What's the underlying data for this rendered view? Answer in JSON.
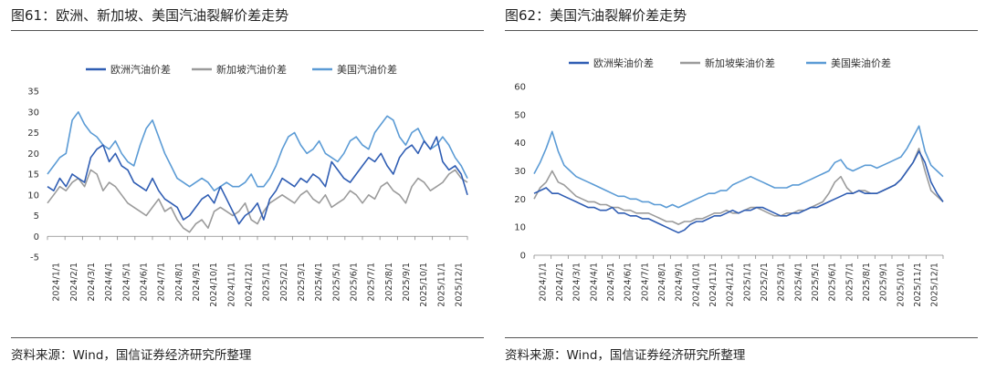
{
  "panels": [
    {
      "figure_title": "图61：欧洲、新加坡、美国汽油裂解价差走势",
      "source": "资料来源：Wind，国信证券经济研究所整理"
    },
    {
      "figure_title": "图62：美国汽油裂解价差走势",
      "source": "资料来源：Wind，国信证券经济研究所整理"
    }
  ],
  "chart_data": [
    {
      "type": "line",
      "title": "图61：欧洲、新加坡、美国汽油裂解价差走势",
      "xlabel": "",
      "ylabel": "",
      "ylim": [
        -5,
        35
      ],
      "yticks": [
        -5,
        0,
        5,
        10,
        15,
        20,
        25,
        30,
        35
      ],
      "x_tick_labels": [
        "2024/1/1",
        "2024/2/1",
        "2024/3/1",
        "2024/4/1",
        "2024/5/1",
        "2024/6/1",
        "2024/7/1",
        "2024/8/1",
        "2024/9/1",
        "2024/10/1",
        "2024/11/1",
        "2024/12/1",
        "2025/1/1",
        "2025/2/1",
        "2025/3/1",
        "2025/4/1",
        "2025/5/1",
        "2025/6/1",
        "2025/7/1",
        "2025/8/1",
        "2025/9/1",
        "2025/10/1",
        "2025/11/1",
        "2025/12/1"
      ],
      "legend_position": "top",
      "series": [
        {
          "name": "欧洲汽油价差",
          "color": "#2f5db3",
          "values": [
            12,
            11,
            14,
            12,
            15,
            14,
            13,
            19,
            21,
            22,
            18,
            20,
            17,
            16,
            13,
            12,
            11,
            14,
            11,
            9,
            8,
            7,
            4,
            5,
            7,
            9,
            10,
            8,
            12,
            9,
            6,
            3,
            5,
            6,
            8,
            4,
            9,
            11,
            14,
            13,
            12,
            14,
            13,
            15,
            14,
            12,
            18,
            16,
            14,
            13,
            15,
            17,
            19,
            18,
            20,
            17,
            15,
            19,
            21,
            22,
            20,
            23,
            21,
            24,
            18,
            16,
            17,
            15,
            10
          ]
        },
        {
          "name": "新加坡汽油价差",
          "color": "#9b9b9b",
          "values": [
            8,
            10,
            12,
            11,
            13,
            14,
            12,
            16,
            15,
            11,
            13,
            12,
            10,
            8,
            7,
            6,
            5,
            7,
            9,
            6,
            7,
            4,
            2,
            1,
            3,
            4,
            2,
            6,
            7,
            6,
            5,
            6,
            8,
            4,
            3,
            6,
            8,
            9,
            10,
            9,
            8,
            10,
            11,
            9,
            8,
            10,
            7,
            8,
            9,
            11,
            10,
            8,
            10,
            9,
            12,
            13,
            11,
            10,
            8,
            12,
            14,
            13,
            11,
            12,
            13,
            15,
            16,
            14,
            13
          ]
        },
        {
          "name": "美国汽油价差",
          "color": "#5b9bd5",
          "values": [
            15,
            17,
            19,
            20,
            28,
            30,
            27,
            25,
            24,
            22,
            21,
            23,
            20,
            18,
            17,
            22,
            26,
            28,
            24,
            20,
            17,
            14,
            13,
            12,
            13,
            14,
            13,
            11,
            12,
            13,
            12,
            12,
            13,
            15,
            12,
            12,
            14,
            17,
            21,
            24,
            25,
            22,
            20,
            21,
            23,
            20,
            19,
            18,
            20,
            23,
            24,
            22,
            21,
            25,
            27,
            29,
            28,
            24,
            22,
            25,
            26,
            23,
            21,
            22,
            24,
            22,
            19,
            17,
            14
          ]
        }
      ]
    },
    {
      "type": "line",
      "title": "图62：美国汽油裂解价差走势",
      "xlabel": "",
      "ylabel": "",
      "ylim": [
        0,
        60
      ],
      "yticks": [
        0,
        10,
        20,
        30,
        40,
        50,
        60
      ],
      "x_tick_labels": [
        "2024/1/1",
        "2024/2/1",
        "2024/3/1",
        "2024/4/1",
        "2024/5/1",
        "2024/6/1",
        "2024/7/1",
        "2024/8/1",
        "2024/9/1",
        "2024/10/1",
        "2024/11/1",
        "2024/12/1",
        "2025/1/1",
        "2025/2/1",
        "2025/3/1",
        "2025/4/1",
        "2025/5/1",
        "2025/6/1",
        "2025/7/1",
        "2025/8/1",
        "2025/9/1",
        "2025/10/1",
        "2025/11/1",
        "2025/12/1"
      ],
      "legend_position": "top",
      "series": [
        {
          "name": "欧洲柴油价差",
          "color": "#2f5db3",
          "values": [
            22,
            23,
            24,
            22,
            22,
            21,
            20,
            19,
            18,
            17,
            17,
            16,
            16,
            17,
            15,
            15,
            14,
            14,
            13,
            13,
            12,
            11,
            10,
            9,
            8,
            9,
            11,
            12,
            12,
            13,
            14,
            14,
            15,
            16,
            15,
            16,
            16,
            17,
            17,
            16,
            15,
            14,
            14,
            15,
            15,
            16,
            17,
            17,
            18,
            19,
            20,
            21,
            22,
            22,
            23,
            22,
            22,
            22,
            23,
            24,
            25,
            27,
            30,
            33,
            37,
            33,
            26,
            22,
            19
          ]
        },
        {
          "name": "新加坡柴油价差",
          "color": "#9b9b9b",
          "values": [
            20,
            24,
            26,
            30,
            26,
            25,
            23,
            21,
            20,
            19,
            19,
            18,
            18,
            17,
            17,
            16,
            16,
            15,
            15,
            15,
            14,
            13,
            12,
            12,
            11,
            12,
            12,
            13,
            13,
            14,
            15,
            15,
            16,
            15,
            15,
            16,
            17,
            17,
            16,
            15,
            14,
            14,
            15,
            15,
            16,
            16,
            17,
            18,
            19,
            22,
            26,
            28,
            24,
            22,
            23,
            23,
            22,
            22,
            23,
            24,
            25,
            27,
            30,
            33,
            38,
            30,
            23,
            21,
            19
          ]
        },
        {
          "name": "美国柴油价差",
          "color": "#5b9bd5",
          "values": [
            29,
            33,
            38,
            44,
            37,
            32,
            30,
            28,
            27,
            26,
            25,
            24,
            23,
            22,
            21,
            21,
            20,
            20,
            19,
            19,
            18,
            18,
            17,
            18,
            17,
            18,
            19,
            20,
            21,
            22,
            22,
            23,
            23,
            25,
            26,
            27,
            28,
            27,
            26,
            25,
            24,
            24,
            24,
            25,
            25,
            26,
            27,
            28,
            29,
            30,
            33,
            34,
            31,
            30,
            31,
            32,
            32,
            31,
            32,
            33,
            34,
            35,
            38,
            42,
            46,
            37,
            32,
            30,
            28
          ]
        }
      ]
    }
  ]
}
